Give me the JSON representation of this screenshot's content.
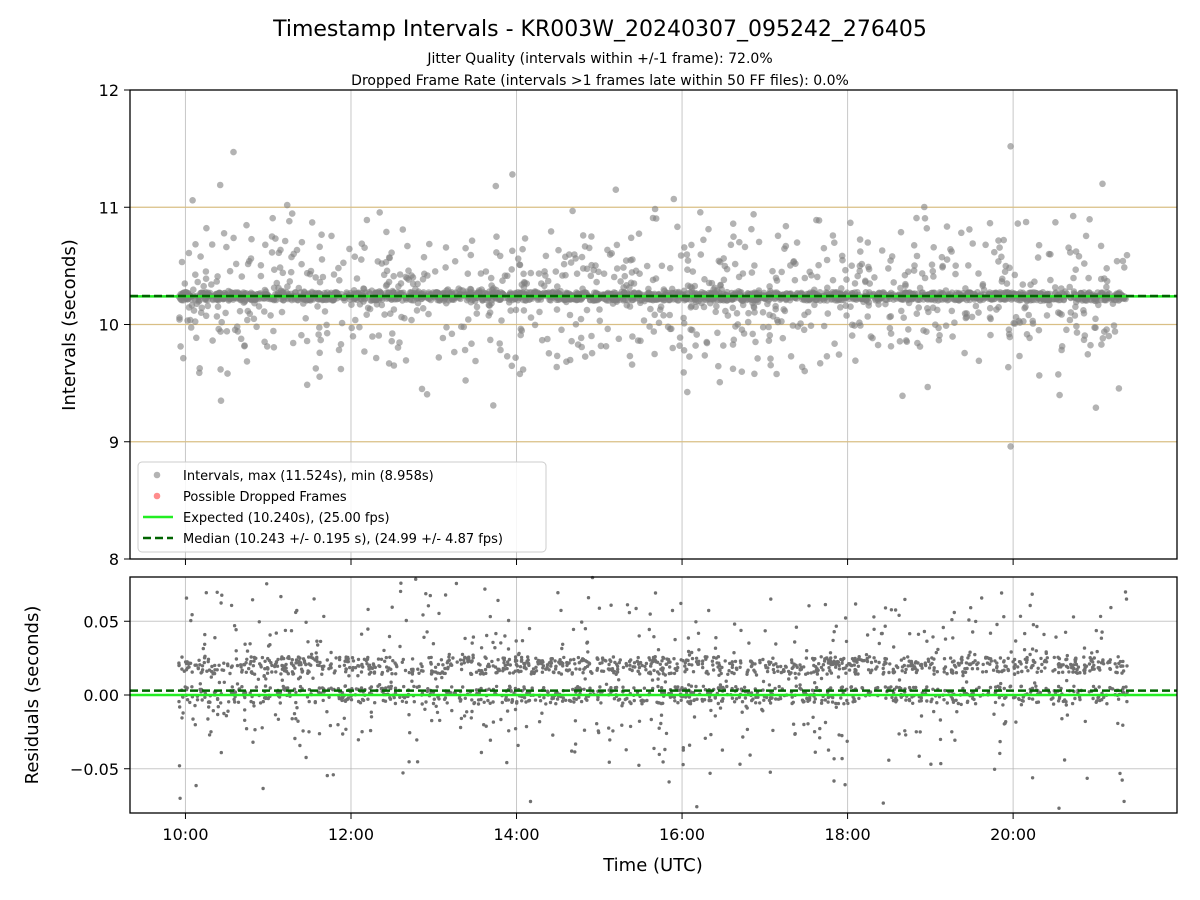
{
  "chart_data": [
    {
      "type": "scatter",
      "title": "Timestamp Intervals - KR003W_20240307_095242_276405",
      "subtitle_lines": [
        "Jitter Quality (intervals within +/-1 frame): 72.0%",
        "Dropped Frame Rate (intervals >1 frames late within 50 FF files): 0.0%"
      ],
      "ylabel": "Intervals (seconds)",
      "xlim_hours": [
        9.33,
        21.98
      ],
      "ylim": [
        8,
        12
      ],
      "y_ticks": [
        8,
        9,
        10,
        11,
        12
      ],
      "y_tick_labels": [
        "8",
        "9",
        "10",
        "11",
        "12"
      ],
      "x_gridlines_hours": [
        10,
        12,
        14,
        16,
        18,
        20
      ],
      "grid": true,
      "reference_lines": [
        9,
        10,
        11
      ],
      "reference_line_color": "#d9bf85",
      "expected_value": 10.24,
      "median_value": 10.243,
      "data_range_hours": [
        9.92,
        21.38
      ],
      "max_interval": 11.524,
      "min_interval": 8.958,
      "notable_points": [
        {
          "x": 10.58,
          "y": 11.47
        },
        {
          "x": 10.42,
          "y": 11.19
        },
        {
          "x": 19.97,
          "y": 11.52
        },
        {
          "x": 19.97,
          "y": 8.96
        },
        {
          "x": 13.95,
          "y": 11.28
        },
        {
          "x": 13.75,
          "y": 11.18
        },
        {
          "x": 15.2,
          "y": 11.15
        },
        {
          "x": 13.72,
          "y": 9.31
        },
        {
          "x": 10.43,
          "y": 9.35
        },
        {
          "x": 21.0,
          "y": 9.29
        },
        {
          "x": 21.08,
          "y": 11.2
        }
      ],
      "legend": {
        "placement": "lower-left",
        "entries": [
          {
            "label": "Intervals, max (11.524s), min (8.958s)",
            "marker": "circle",
            "color": "#808080"
          },
          {
            "label": "Possible Dropped Frames",
            "marker": "circle",
            "color": "#ff4040"
          },
          {
            "label": "Expected (10.240s), (25.00 fps)",
            "marker": "line",
            "color": "#22ee22"
          },
          {
            "label": "Median (10.243 +/- 0.195 s), (24.99 +/- 4.87 fps)",
            "marker": "dashed-line",
            "color": "#006400"
          }
        ]
      },
      "colors": {
        "points": "#808080",
        "expected": "#22ee22",
        "median": "#006400"
      }
    },
    {
      "type": "scatter",
      "ylabel": "Residuals (seconds)",
      "xlabel": "Time (UTC)",
      "ylim": [
        -0.08,
        0.08
      ],
      "y_ticks": [
        -0.05,
        0.0,
        0.05
      ],
      "y_tick_labels": [
        "−0.05",
        "0.00",
        "0.05"
      ],
      "x_ticks_hours": [
        10,
        12,
        14,
        16,
        18,
        20
      ],
      "x_tick_labels": [
        "10:00",
        "12:00",
        "14:00",
        "16:00",
        "18:00",
        "20:00"
      ],
      "grid": true,
      "zero_line": 0.0,
      "median_residual": 0.003,
      "colors": {
        "points": "#707070",
        "zero": "#22ee22",
        "median": "#006400"
      }
    }
  ]
}
